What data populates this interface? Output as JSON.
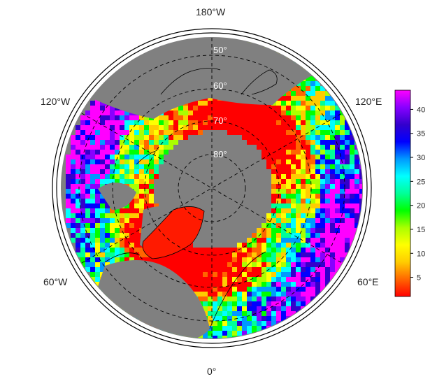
{
  "map": {
    "projection": "north polar stereographic",
    "center_longitude_bottom": "0°",
    "longitude_labels": {
      "top": "180°W",
      "bottom": "0°",
      "upper_left": "120°W",
      "upper_right": "120°E",
      "lower_left": "60°W",
      "lower_right": "60°E"
    },
    "latitude_labels": [
      "50°",
      "60°",
      "70°",
      "80°"
    ],
    "ocean_color": "#808080",
    "graticule_style": "dashed"
  },
  "colorbar": {
    "ticks": [
      "5",
      "10",
      "15",
      "20",
      "25",
      "30",
      "35",
      "40"
    ],
    "range": [
      1,
      44
    ],
    "colors": [
      "#ff0000",
      "#ff6600",
      "#ffcc00",
      "#ffff00",
      "#aaff00",
      "#00ff00",
      "#00ff99",
      "#00ffff",
      "#0099ff",
      "#0000ff",
      "#3300cc",
      "#8800ff",
      "#ff00ff"
    ]
  }
}
